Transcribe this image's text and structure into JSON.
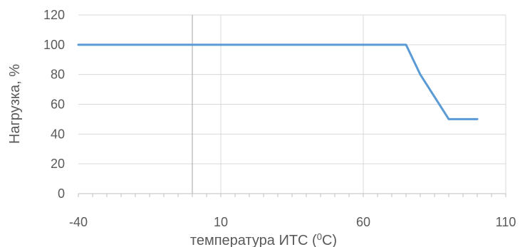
{
  "chart_data": {
    "type": "line",
    "title": "",
    "xlabel": "температура ИТС (",
    "xlabel_superscript": "0",
    "xlabel_suffix": "С)",
    "ylabel": "Нагрузка, %",
    "xlim": [
      -40,
      110
    ],
    "ylim": [
      0,
      120
    ],
    "x_ticks": [
      -40,
      10,
      60,
      110
    ],
    "y_ticks": [
      0,
      20,
      40,
      60,
      80,
      100,
      120
    ],
    "x_minor_step": 5,
    "horizontal_grid": true,
    "vertical_grid": true,
    "vertical_marker_x": 0,
    "series": [
      {
        "x": [
          -40,
          75,
          80,
          90,
          100
        ],
        "y": [
          100,
          100,
          80,
          50,
          50
        ]
      }
    ],
    "colors": {
      "line": "#5b9bd5",
      "grid": "#d9d9d9",
      "axis": "#bfbfbf",
      "marker": "#a6a6a6",
      "text": "#595959"
    }
  }
}
